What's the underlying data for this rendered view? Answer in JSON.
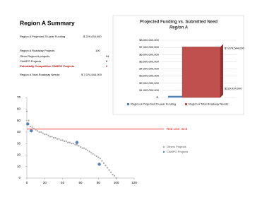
{
  "summary": {
    "title": "Region A Summary",
    "rows": [
      {
        "label": "Region A Projected 20-year Funding",
        "value": "$  229,434,000"
      },
      {
        "label": "Region A Roadway Projects",
        "value": "100"
      },
      {
        "label": "Other Region A projects",
        "value": "94"
      },
      {
        "label": "CAMPO Projects",
        "value": "6"
      },
      {
        "label": "Potentially Competitive CAMPO Projects",
        "value": "2"
      },
      {
        "label": "Region A Total Roadway Needs:",
        "value": "$ 7,074,544,000"
      }
    ]
  },
  "chart_data": [
    {
      "type": "bar",
      "title": "Projected Funding vs. Submitted Need",
      "subtitle": "Region A",
      "series": [
        {
          "name": "Region A Projected 20-year Funding",
          "color": "#4f81bd",
          "values": [
            229434000
          ],
          "value_labels": [
            "$229,434,000"
          ]
        },
        {
          "name": "Region A Total Roadway Needs:",
          "color": "#c0504d",
          "values": [
            7074544000
          ],
          "value_labels": [
            "$7,074,544,000"
          ]
        }
      ],
      "ylim": [
        0,
        8000000000
      ],
      "yticks": [
        {
          "value": 0,
          "label": "$-"
        },
        {
          "value": 1000000000,
          "label": "$1,000,000,000"
        },
        {
          "value": 2000000000,
          "label": "$2,000,000,000"
        },
        {
          "value": 3000000000,
          "label": "$3,000,000,000"
        },
        {
          "value": 4000000000,
          "label": "$4,000,000,000"
        },
        {
          "value": 5000000000,
          "label": "$5,000,000,000"
        },
        {
          "value": 6000000000,
          "label": "$6,000,000,000"
        },
        {
          "value": 7000000000,
          "label": "$7,000,000,000"
        },
        {
          "value": 8000000000,
          "label": "$8,000,000,000"
        }
      ],
      "grid": true
    },
    {
      "type": "scatter",
      "series": [
        {
          "name": "Others Projects",
          "color": "#a6a6a6",
          "x": [
            0,
            2,
            4,
            6,
            8,
            10,
            12,
            14,
            16,
            18,
            20,
            22,
            24,
            26,
            28,
            30,
            32,
            34,
            36,
            38,
            40,
            42,
            44,
            46,
            48,
            50,
            52,
            54,
            56,
            58,
            60,
            62,
            64,
            66,
            68,
            70,
            72,
            74,
            76,
            78,
            80,
            82,
            84,
            86,
            88,
            90,
            92,
            94,
            96,
            98,
            100
          ],
          "values": [
            58,
            50,
            45,
            44,
            43,
            42,
            41,
            40,
            40,
            39,
            38,
            38,
            37,
            36,
            36,
            35,
            35,
            34,
            34,
            33,
            33,
            32,
            32,
            31,
            31,
            30,
            30,
            29,
            29,
            28,
            27,
            26,
            26,
            25,
            24,
            23,
            22,
            21,
            20,
            19,
            18,
            17,
            15,
            13,
            11,
            9,
            7,
            5,
            3,
            2,
            0
          ]
        },
        {
          "name": "CAMPO Projects",
          "color": "#4f81bd",
          "x": [
            1,
            5,
            56,
            81
          ],
          "values": [
            47,
            41,
            31,
            12
          ]
        }
      ],
      "xlim": [
        0,
        120
      ],
      "xticks": [
        0,
        20,
        40,
        60,
        80,
        100,
        120
      ],
      "ylim": [
        0,
        70
      ],
      "yticks": [
        0,
        10,
        20,
        30,
        40,
        50,
        60,
        70
      ],
      "annotation": {
        "text": "Red Line: 42.5",
        "value": 42.5,
        "color": "#ff0000"
      }
    }
  ]
}
